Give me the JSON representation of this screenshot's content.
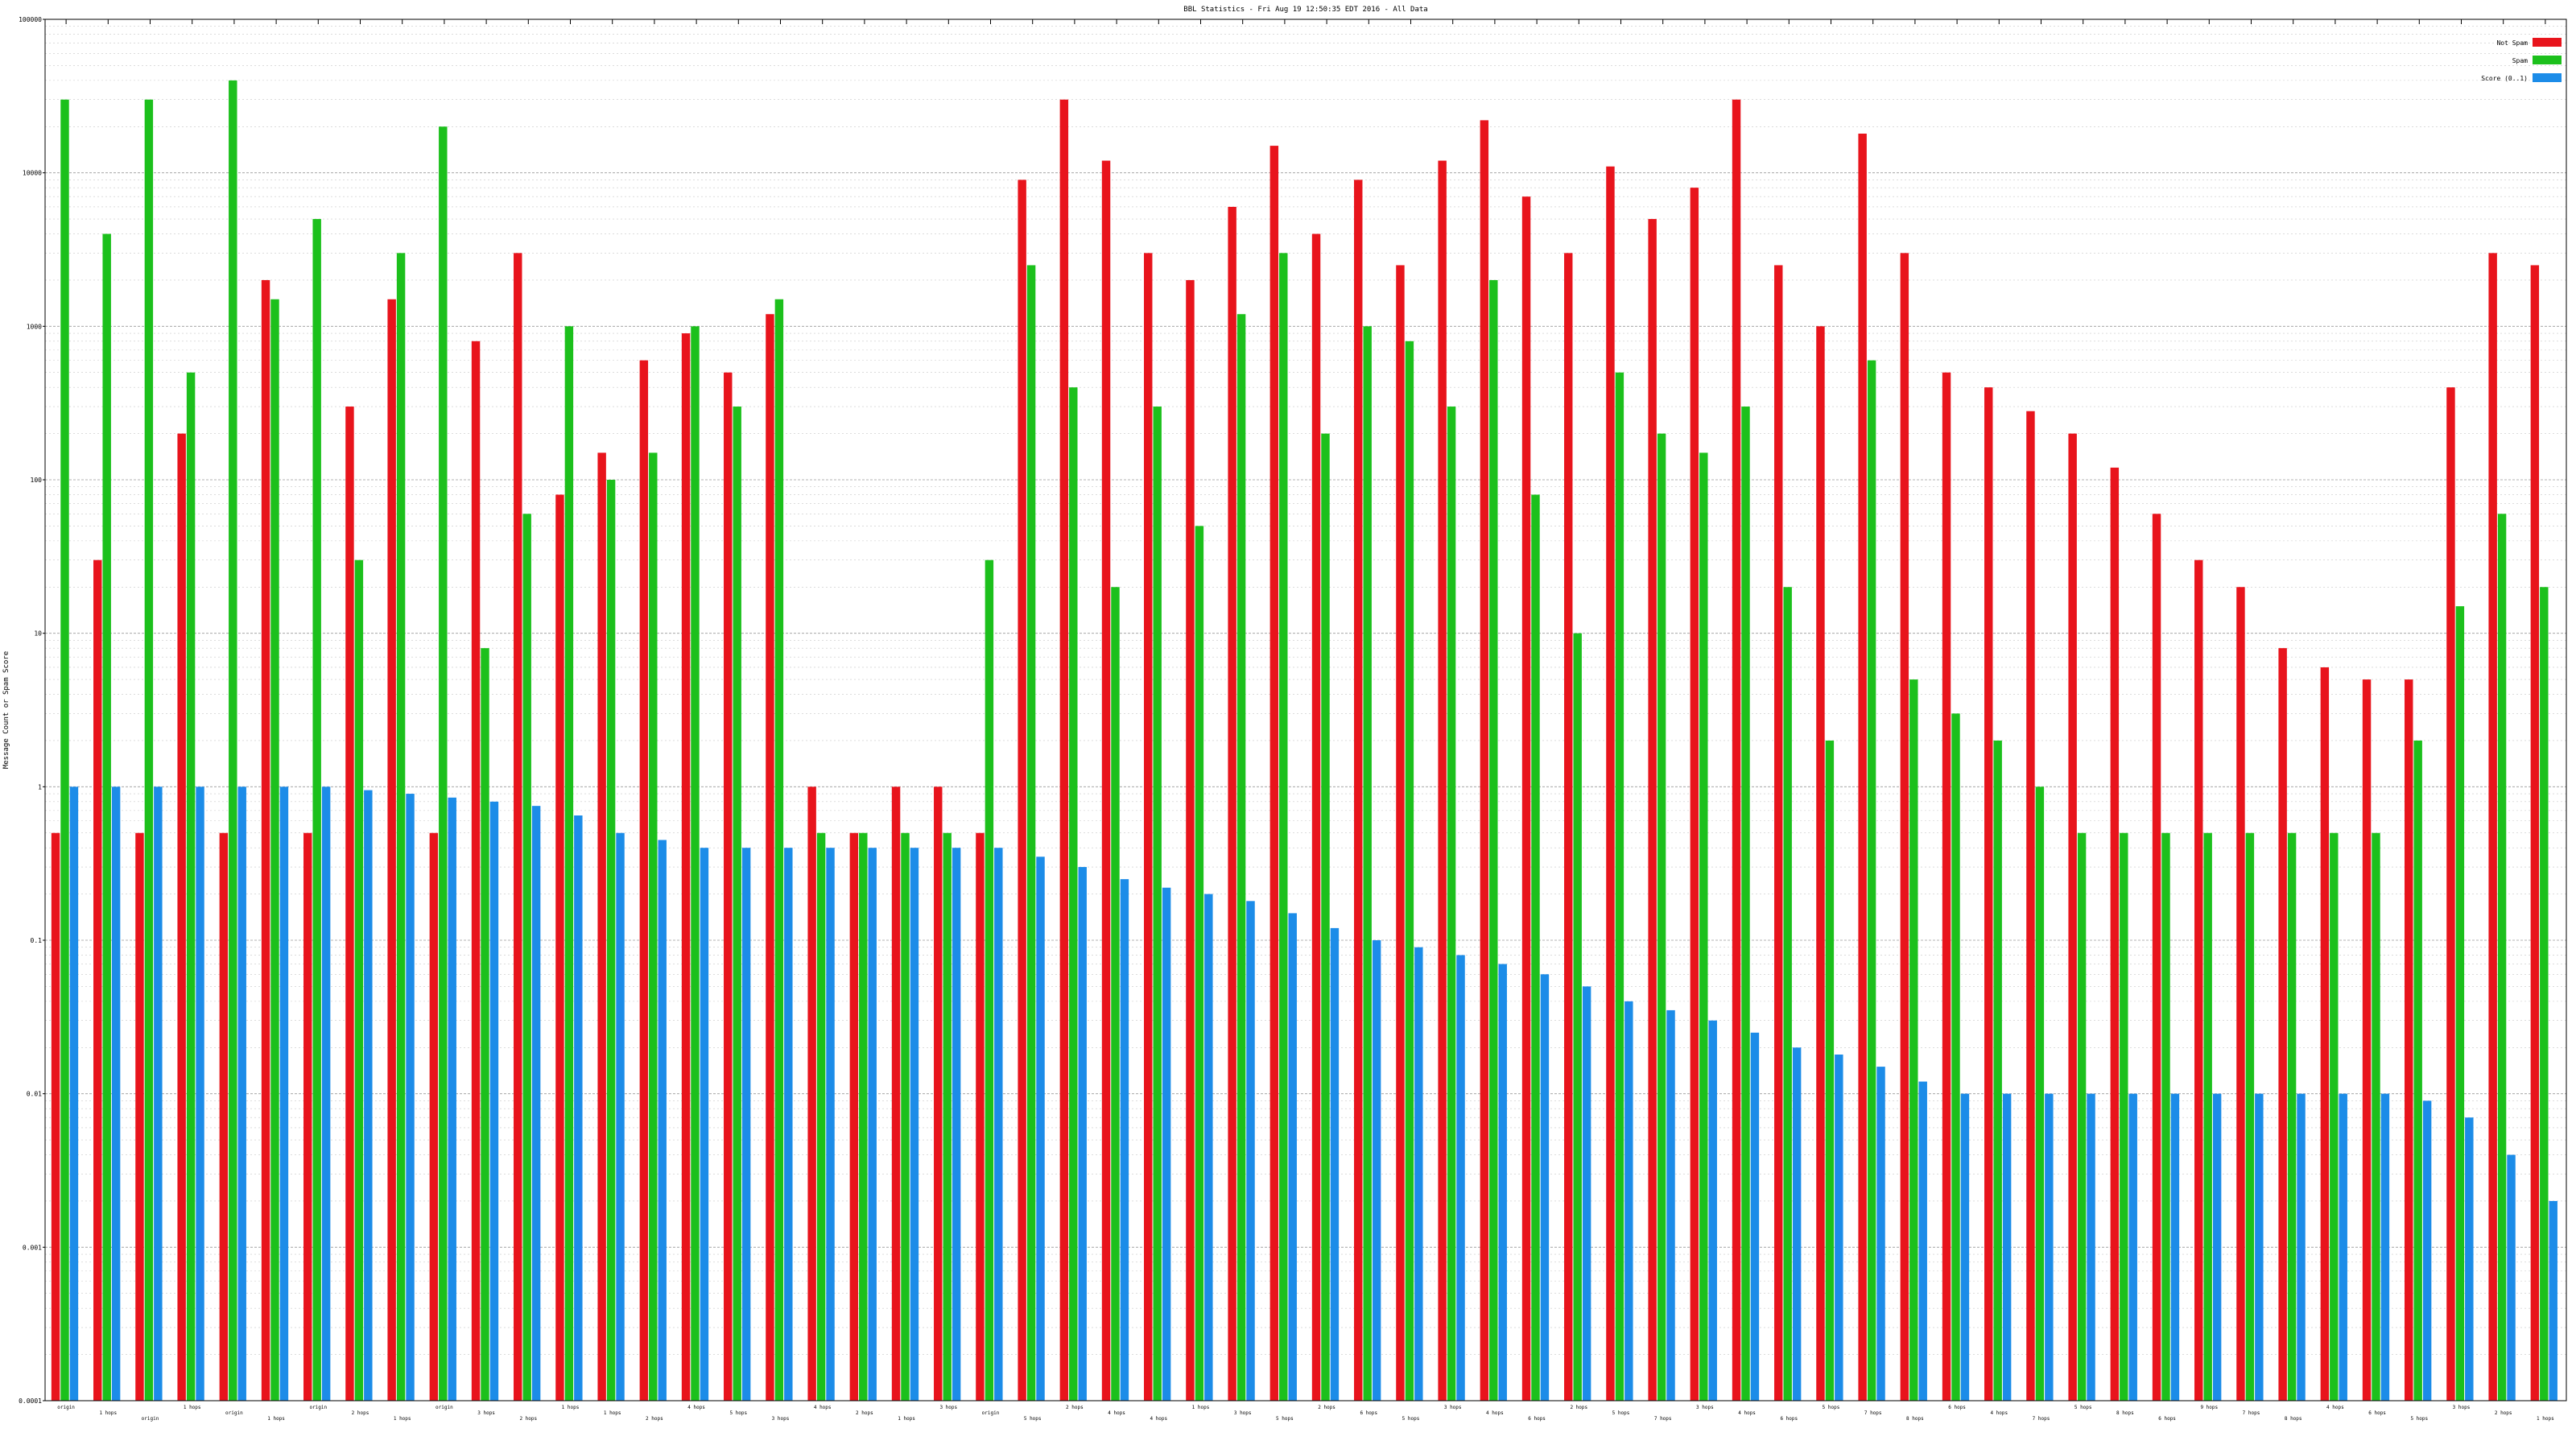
{
  "chart_data": {
    "type": "bar",
    "title": "BBL Statistics - Fri Aug 19 12:50:35 EDT 2016 - All Data",
    "ylabel": "Message Count or Spam Score",
    "yscale": "log",
    "ylim": [
      0.0001,
      100000
    ],
    "yticks": [
      "0.0001",
      "0.001",
      "0.01",
      "0.1",
      "1",
      "10",
      "100",
      "1000",
      "10000",
      "100000"
    ],
    "grid": true,
    "legend_position": "top-right",
    "legend": [
      {
        "key": "not_spam",
        "label": "Not Spam",
        "color": "#e8141c"
      },
      {
        "key": "spam",
        "label": "Spam",
        "color": "#1cc01c"
      },
      {
        "key": "score",
        "label": "Score (0..1)",
        "color": "#1c8ce8"
      }
    ],
    "categories": [
      "origin",
      "1 hops",
      "origin",
      "1 hops",
      "origin",
      "1 hops",
      "origin",
      "2 hops",
      "1 hops",
      "origin",
      "3 hops",
      "2 hops",
      "1 hops",
      "1 hops",
      "2 hops",
      "4 hops",
      "5 hops",
      "3 hops",
      "4 hops",
      "2 hops",
      "1 hops",
      "3 hops",
      "origin",
      "5 hops",
      "2 hops",
      "4 hops",
      "4 hops",
      "1 hops",
      "3 hops",
      "5 hops",
      "2 hops",
      "6 hops",
      "5 hops",
      "3 hops",
      "4 hops",
      "6 hops",
      "2 hops",
      "5 hops",
      "7 hops",
      "3 hops",
      "4 hops",
      "6 hops",
      "5 hops",
      "7 hops",
      "8 hops",
      "6 hops",
      "4 hops",
      "7 hops",
      "5 hops",
      "8 hops",
      "6 hops",
      "9 hops",
      "7 hops",
      "8 hops",
      "4 hops",
      "6 hops",
      "5 hops",
      "3 hops",
      "2 hops",
      "1 hops"
    ],
    "series": [
      {
        "name": "Not Spam",
        "color": "#e8141c",
        "values": [
          0.5,
          30,
          0.5,
          200,
          0.5,
          2000,
          0.5,
          300,
          1500,
          0.5,
          800,
          3000,
          80,
          150,
          600,
          900,
          500,
          1200,
          1,
          0.5,
          1,
          1,
          0.5,
          9000,
          30000,
          12000,
          3000,
          2000,
          6000,
          15000,
          4000,
          9000,
          2500,
          12000,
          22000,
          7000,
          3000,
          11000,
          5000,
          8000,
          30000,
          2500,
          1000,
          18000,
          3000,
          500,
          400,
          280,
          200,
          120,
          60,
          30,
          20,
          8,
          6,
          5,
          5,
          400,
          3000,
          2500
        ]
      },
      {
        "name": "Spam",
        "color": "#1cc01c",
        "values": [
          30000,
          4000,
          30000,
          500,
          40000,
          1500,
          5000,
          30,
          3000,
          20000,
          8,
          60,
          1000,
          100,
          150,
          1000,
          300,
          1500,
          0.5,
          0.5,
          0.5,
          0.5,
          30,
          2500,
          400,
          20,
          300,
          50,
          1200,
          3000,
          200,
          1000,
          800,
          300,
          2000,
          80,
          10,
          500,
          200,
          150,
          300,
          20,
          2,
          600,
          5,
          3,
          2,
          1,
          0.5,
          0.5,
          0.5,
          0.5,
          0.5,
          0.5,
          0.5,
          0.5,
          2,
          15,
          60,
          20
        ]
      },
      {
        "name": "Score (0..1)",
        "color": "#1c8ce8",
        "values": [
          1,
          1,
          1,
          1,
          1,
          1,
          1,
          0.95,
          0.9,
          0.85,
          0.8,
          0.75,
          0.65,
          0.5,
          0.45,
          0.4,
          0.4,
          0.4,
          0.4,
          0.4,
          0.4,
          0.4,
          0.4,
          0.35,
          0.3,
          0.25,
          0.22,
          0.2,
          0.18,
          0.15,
          0.12,
          0.1,
          0.09,
          0.08,
          0.07,
          0.06,
          0.05,
          0.04,
          0.035,
          0.03,
          0.025,
          0.02,
          0.018,
          0.015,
          0.012,
          0.01,
          0.01,
          0.01,
          0.01,
          0.01,
          0.01,
          0.01,
          0.01,
          0.01,
          0.01,
          0.01,
          0.009,
          0.007,
          0.004,
          0.002
        ]
      }
    ]
  }
}
